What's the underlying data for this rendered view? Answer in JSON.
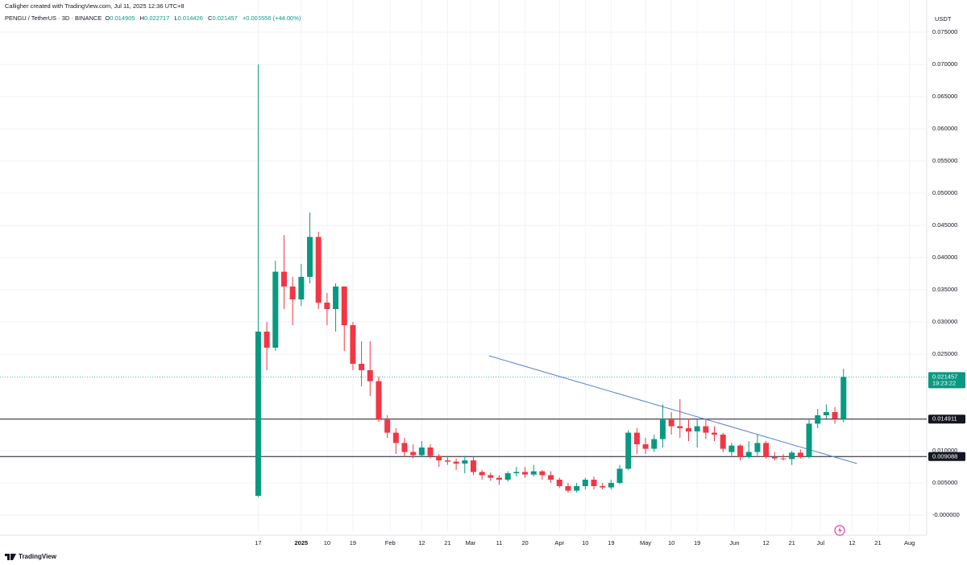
{
  "header": {
    "credit": "Calligher created with TradingView.com, Jul 11, 2025 12:36 UTC+8"
  },
  "chart_data": {
    "type": "candlestick",
    "title": "PENGU / TetherUS · 3D · BINANCE",
    "legend": {
      "open_label": "O",
      "high_label": "H",
      "low_label": "L",
      "close_label": "C",
      "change": "+0.006556 (+44.00%)"
    },
    "y_unit": "USDT",
    "x": [
      0,
      3,
      6,
      9,
      12,
      15,
      18,
      21,
      24,
      27,
      30,
      33,
      36,
      39,
      42,
      45,
      48,
      51,
      54,
      57,
      60,
      63,
      66,
      69,
      72,
      75,
      78,
      81,
      84,
      87,
      90,
      93,
      96,
      99,
      102,
      105,
      108,
      111,
      114,
      117,
      120,
      123,
      126,
      129,
      132,
      135,
      138,
      141,
      144,
      147,
      150,
      153,
      156,
      159,
      162,
      165,
      168,
      171,
      174,
      177,
      180,
      183,
      186,
      189,
      192,
      195,
      198,
      201,
      204
    ],
    "open": [
      0.003,
      0.0285,
      0.026,
      0.0378,
      0.0355,
      0.0335,
      0.037,
      0.0432,
      0.033,
      0.032,
      0.0355,
      0.0295,
      0.0235,
      0.0225,
      0.0208,
      0.0148,
      0.0128,
      0.0112,
      0.0098,
      0.0093,
      0.0105,
      0.0092,
      0.0085,
      0.0083,
      0.008,
      0.0085,
      0.0067,
      0.0062,
      0.0058,
      0.0055,
      0.0065,
      0.0067,
      0.0063,
      0.0068,
      0.0062,
      0.0055,
      0.0045,
      0.0038,
      0.0045,
      0.0055,
      0.0045,
      0.0043,
      0.005,
      0.0072,
      0.0128,
      0.011,
      0.0103,
      0.0118,
      0.0148,
      0.0138,
      0.0135,
      0.013,
      0.0138,
      0.0128,
      0.0125,
      0.0098,
      0.0108,
      0.009,
      0.0098,
      0.0112,
      0.009,
      0.0088,
      0.0087,
      0.0097,
      0.009,
      0.0142,
      0.0155,
      0.016,
      0.014905
    ],
    "high": [
      0.07,
      0.03,
      0.0395,
      0.0435,
      0.037,
      0.039,
      0.047,
      0.044,
      0.0345,
      0.036,
      0.0355,
      0.03,
      0.027,
      0.027,
      0.0215,
      0.0155,
      0.0135,
      0.012,
      0.011,
      0.0115,
      0.011,
      0.0095,
      0.0092,
      0.0088,
      0.0092,
      0.009,
      0.007,
      0.0066,
      0.0062,
      0.0068,
      0.0075,
      0.0075,
      0.0078,
      0.007,
      0.0068,
      0.0058,
      0.005,
      0.005,
      0.0058,
      0.006,
      0.005,
      0.0055,
      0.0078,
      0.0132,
      0.0135,
      0.012,
      0.0125,
      0.0172,
      0.016,
      0.018,
      0.015,
      0.015,
      0.015,
      0.0138,
      0.0128,
      0.0112,
      0.011,
      0.0115,
      0.0125,
      0.0115,
      0.0098,
      0.0095,
      0.01,
      0.0102,
      0.0148,
      0.0165,
      0.0172,
      0.0168,
      0.022717
    ],
    "low": [
      0.0028,
      0.0225,
      0.0255,
      0.032,
      0.0295,
      0.0325,
      0.036,
      0.032,
      0.0295,
      0.0285,
      0.0255,
      0.0225,
      0.02,
      0.0185,
      0.0145,
      0.012,
      0.0095,
      0.009,
      0.0088,
      0.009,
      0.0088,
      0.0075,
      0.0078,
      0.007,
      0.0065,
      0.0062,
      0.0055,
      0.0053,
      0.0047,
      0.0052,
      0.006,
      0.0058,
      0.006,
      0.0055,
      0.005,
      0.0042,
      0.0035,
      0.0035,
      0.004,
      0.004,
      0.004,
      0.004,
      0.0048,
      0.007,
      0.0095,
      0.0095,
      0.0098,
      0.0105,
      0.0125,
      0.012,
      0.0115,
      0.0105,
      0.0118,
      0.0115,
      0.0098,
      0.0092,
      0.0085,
      0.0088,
      0.0092,
      0.0088,
      0.0085,
      0.0085,
      0.0078,
      0.0088,
      0.0088,
      0.0135,
      0.015,
      0.0142,
      0.014426
    ],
    "close": [
      0.0285,
      0.026,
      0.0378,
      0.0355,
      0.0335,
      0.037,
      0.0432,
      0.033,
      0.032,
      0.0355,
      0.0295,
      0.0235,
      0.0225,
      0.0208,
      0.0148,
      0.0128,
      0.0112,
      0.0098,
      0.0093,
      0.0105,
      0.0092,
      0.0085,
      0.0083,
      0.008,
      0.0085,
      0.0067,
      0.0062,
      0.0058,
      0.0055,
      0.0065,
      0.0067,
      0.0063,
      0.0068,
      0.0062,
      0.0055,
      0.0045,
      0.0038,
      0.0045,
      0.0055,
      0.0045,
      0.0043,
      0.005,
      0.0072,
      0.0128,
      0.011,
      0.0103,
      0.0118,
      0.0148,
      0.0138,
      0.0135,
      0.013,
      0.0138,
      0.0128,
      0.0125,
      0.0103,
      0.0108,
      0.009,
      0.0098,
      0.0112,
      0.009,
      0.0088,
      0.0087,
      0.0097,
      0.009,
      0.0142,
      0.0155,
      0.016,
      0.015,
      0.021457
    ],
    "up_color": "#089981",
    "down_color": "#f23645",
    "xlim": [
      -90,
      233
    ],
    "xticks": [
      {
        "value": 0,
        "label": "17"
      },
      {
        "value": 15,
        "label": "2025"
      },
      {
        "value": 24,
        "label": "10"
      },
      {
        "value": 33,
        "label": "19"
      },
      {
        "value": 46,
        "label": "Feb"
      },
      {
        "value": 57,
        "label": "12"
      },
      {
        "value": 66,
        "label": "21"
      },
      {
        "value": 74,
        "label": "Mar"
      },
      {
        "value": 84,
        "label": "11"
      },
      {
        "value": 93,
        "label": "20"
      },
      {
        "value": 105,
        "label": "Apr"
      },
      {
        "value": 114,
        "label": "10"
      },
      {
        "value": 123,
        "label": "19"
      },
      {
        "value": 135,
        "label": "May"
      },
      {
        "value": 144,
        "label": "10"
      },
      {
        "value": 153,
        "label": "19"
      },
      {
        "value": 166,
        "label": "Jun"
      },
      {
        "value": 177,
        "label": "12"
      },
      {
        "value": 186,
        "label": "21"
      },
      {
        "value": 196,
        "label": "Jul"
      },
      {
        "value": 207,
        "label": "12"
      },
      {
        "value": 216,
        "label": "21"
      },
      {
        "value": 227,
        "label": "Aug"
      }
    ],
    "ylim": [
      -0.0025,
      0.08
    ],
    "yticks": [
      {
        "value": 0.075,
        "label": "0.075000"
      },
      {
        "value": 0.07,
        "label": "0.070000"
      },
      {
        "value": 0.065,
        "label": "0.065000"
      },
      {
        "value": 0.06,
        "label": "0.060000"
      },
      {
        "value": 0.055,
        "label": "0.055000"
      },
      {
        "value": 0.05,
        "label": "0.050000"
      },
      {
        "value": 0.045,
        "label": "0.045000"
      },
      {
        "value": 0.04,
        "label": "0.040000"
      },
      {
        "value": 0.035,
        "label": "0.035000"
      },
      {
        "value": 0.03,
        "label": "0.030000"
      },
      {
        "value": 0.025,
        "label": "0.025000"
      },
      {
        "value": 0.01,
        "label": "0.010000"
      },
      {
        "value": 0.005,
        "label": "0.005000"
      },
      {
        "value": 0,
        "label": "-0.000000"
      }
    ],
    "grid": true,
    "price_lines": [
      0.014911,
      0.009088
    ],
    "countdown": "19:23:22",
    "trendline": {
      "x": [
        80.4,
        208.7
      ],
      "y": [
        0.02475,
        0.008
      ],
      "color": "#5b7fd6"
    }
  },
  "footer": {
    "brand": "TradingView"
  }
}
